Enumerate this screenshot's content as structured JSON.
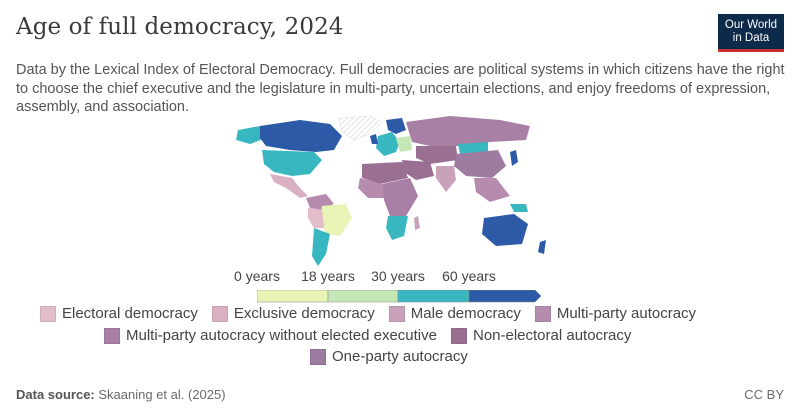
{
  "title": "Age of full democracy, 2024",
  "subtitle": "Data by the Lexical Index of Electoral Democracy. Full democracies are political systems in which citizens have the right to choose the chief executive and the legislature in multi-party, uncertain elections, and enjoy freedoms of expression, assembly, and association.",
  "logo": {
    "line1": "Our World",
    "line2": "in Data"
  },
  "legend_scale": {
    "ticks": [
      "0 years",
      "18 years",
      "30 years",
      "60 years"
    ],
    "bins": [
      {
        "color": "#e7f4b6"
      },
      {
        "color": "#c5e7b6"
      },
      {
        "color": "#39b7c0"
      },
      {
        "color": "#2c5aa6"
      }
    ]
  },
  "categories": [
    {
      "label": "Electoral democracy",
      "color": "#e2bcc8"
    },
    {
      "label": "Exclusive democracy",
      "color": "#d8b0c1"
    },
    {
      "label": "Male democracy",
      "color": "#c9a2ba"
    },
    {
      "label": "Multi-party autocracy",
      "color": "#b58cae"
    },
    {
      "label": "Multi-party autocracy without elected executive",
      "color": "#a880a6"
    },
    {
      "label": "Non-electoral autocracy",
      "color": "#9a7092"
    },
    {
      "label": "One-party autocracy",
      "color": "#9e7ba0"
    }
  ],
  "footer": {
    "source_label": "Data source:",
    "source": "Skaaning et al. (2025)",
    "license": "CC BY"
  }
}
